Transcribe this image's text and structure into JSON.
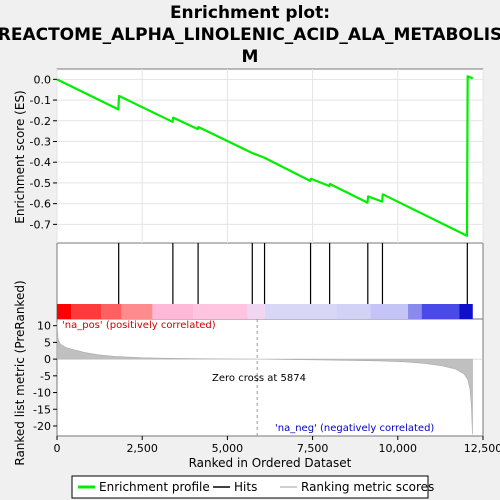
{
  "chart_data": {
    "type": "line",
    "title_lines": [
      "Enrichment plot:",
      "REACTOME_ALPHA_LINOLENIC_ACID_ALA_METABOLIS",
      "M"
    ],
    "xlabel": "Ranked in Ordered Dataset",
    "top_ylabel": "Enrichment score (ES)",
    "bottom_ylabel": "Ranked list metric (PreRanked)",
    "xlim": [
      0,
      12500
    ],
    "top_ylim": [
      -0.79,
      0.05
    ],
    "bottom_ylim": [
      -23,
      12
    ],
    "x_ticks": [
      0,
      2500,
      5000,
      7500,
      10000,
      12500
    ],
    "x_tick_labels": [
      "0",
      "2,500",
      "5,000",
      "7,500",
      "10,000",
      "12,500"
    ],
    "top_y_ticks": [
      0.0,
      -0.1,
      -0.2,
      -0.3,
      -0.4,
      -0.5,
      -0.6,
      -0.7
    ],
    "top_y_tick_labels": [
      "0.0",
      "-0.1",
      "-0.2",
      "-0.3",
      "-0.4",
      "-0.5",
      "-0.6",
      "-0.7"
    ],
    "bottom_y_ticks": [
      10,
      5,
      0,
      -5,
      -10,
      -15,
      -20
    ],
    "bottom_y_tick_labels": [
      "10",
      "5",
      "0",
      "-5",
      "-10",
      "-15",
      "-20"
    ],
    "enrichment_profile": {
      "name": "Enrichment profile",
      "color": "#00ee00",
      "x": [
        0,
        1800,
        1820,
        3390,
        3410,
        4130,
        4150,
        5720,
        6080,
        7430,
        7450,
        7990,
        8010,
        9110,
        9130,
        9540,
        9560,
        12030,
        12050,
        12200
      ],
      "y": [
        0.0,
        -0.145,
        -0.08,
        -0.205,
        -0.185,
        -0.24,
        -0.23,
        -0.355,
        -0.378,
        -0.49,
        -0.48,
        -0.515,
        -0.505,
        -0.595,
        -0.565,
        -0.59,
        -0.555,
        -0.755,
        0.015,
        0.005
      ]
    },
    "hits": {
      "name": "Hits",
      "color": "#000000",
      "x": [
        1810,
        3400,
        4140,
        5730,
        6090,
        7440,
        8000,
        9120,
        9550,
        12040
      ]
    },
    "ranking_metric": {
      "name": "Ranking metric scores",
      "color": "#c0c0c0",
      "x": [
        0,
        30,
        100,
        250,
        500,
        800,
        1200,
        1700,
        2500,
        3500,
        4500,
        5500,
        5874,
        6500,
        7500,
        8500,
        9500,
        10200,
        10800,
        11300,
        11700,
        11950,
        12050,
        12120,
        12160,
        12190
      ],
      "y": [
        11.0,
        6.0,
        4.5,
        3.5,
        2.8,
        2.0,
        1.3,
        0.8,
        0.4,
        0.2,
        0.1,
        0.03,
        0.0,
        -0.1,
        -0.2,
        -0.35,
        -0.55,
        -0.8,
        -1.3,
        -2.0,
        -3.0,
        -4.5,
        -6.0,
        -9.0,
        -14.0,
        -22.5
      ]
    },
    "zero_cross": 5874,
    "annotations": {
      "zero_cross_text": "Zero cross at 5874",
      "pos_text": "'na_pos' (positively correlated)",
      "neg_text": "'na_neg' (negatively correlated)",
      "pos_color": "#cc0000",
      "neg_color": "#0000cc"
    },
    "heat_strip": [
      {
        "x0": 0,
        "x1": 420,
        "color": "#ff0000"
      },
      {
        "x0": 420,
        "x1": 1300,
        "color": "#ff3a3a"
      },
      {
        "x0": 1300,
        "x1": 1900,
        "color": "#ff6060"
      },
      {
        "x0": 1900,
        "x1": 2800,
        "color": "#ff8c8c"
      },
      {
        "x0": 2800,
        "x1": 4000,
        "color": "#ffb8d8"
      },
      {
        "x0": 4000,
        "x1": 5600,
        "color": "#ffc4e2"
      },
      {
        "x0": 5600,
        "x1": 6100,
        "color": "#f0d6f0"
      },
      {
        "x0": 6100,
        "x1": 8200,
        "color": "#d8d8f6"
      },
      {
        "x0": 8200,
        "x1": 9200,
        "color": "#d2d2f6"
      },
      {
        "x0": 9200,
        "x1": 10300,
        "color": "#c4c4f6"
      },
      {
        "x0": 10300,
        "x1": 10700,
        "color": "#8a8aee"
      },
      {
        "x0": 10700,
        "x1": 11800,
        "color": "#4a4ae6"
      },
      {
        "x0": 11800,
        "x1": 12200,
        "color": "#1010c8"
      }
    ],
    "legend": {
      "placement": "bottom",
      "entries": [
        {
          "label": "Enrichment profile",
          "color": "#00ee00"
        },
        {
          "label": "Hits",
          "color": "#000000"
        },
        {
          "label": "Ranking metric scores",
          "color": "#c0c0c0"
        }
      ]
    }
  }
}
